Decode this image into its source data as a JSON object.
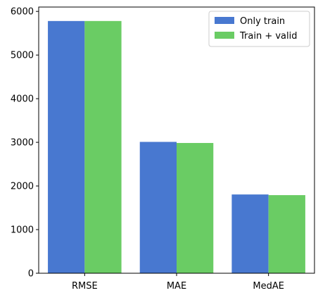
{
  "chart_data": {
    "type": "bar",
    "title": "",
    "xlabel": "",
    "ylabel": "",
    "categories": [
      "RMSE",
      "MAE",
      "MedAE"
    ],
    "series": [
      {
        "name": "Only train",
        "color": "#4878d0",
        "values": [
          5780,
          3010,
          1805
        ]
      },
      {
        "name": "Train + valid",
        "color": "#6acc64",
        "values": [
          5780,
          2985,
          1790
        ]
      }
    ],
    "ylim": [
      0,
      6100
    ],
    "yticks": [
      0,
      1000,
      2000,
      3000,
      4000,
      5000,
      6000
    ],
    "grid": false,
    "legend_position": "top-right"
  }
}
